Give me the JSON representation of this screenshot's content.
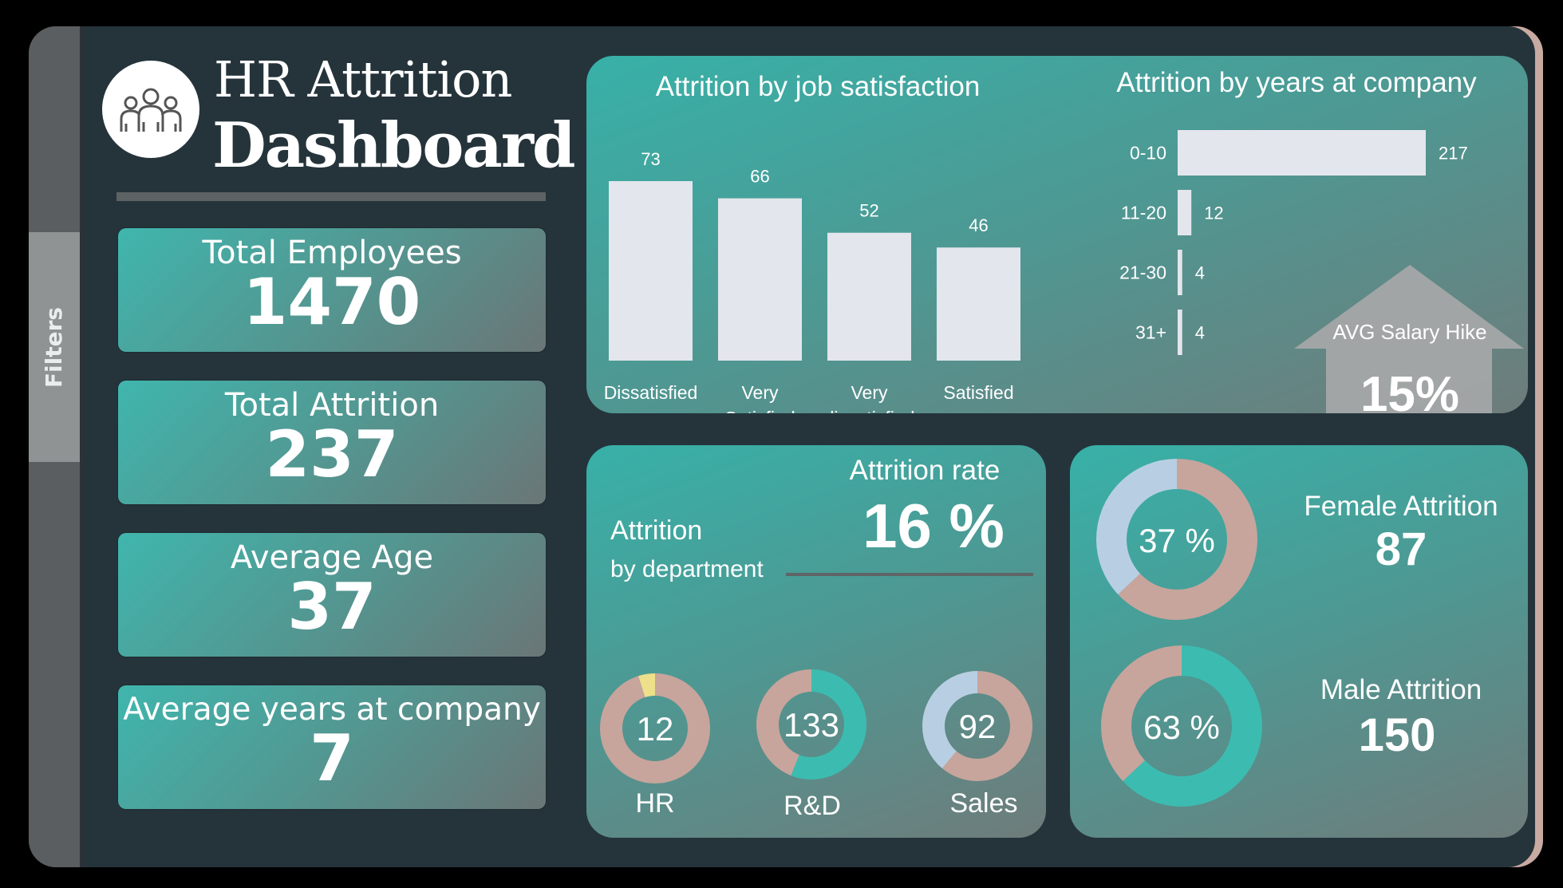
{
  "sidebar": {
    "filters_label": "Filters"
  },
  "header": {
    "title_line1": "HR Attrition",
    "title_line2": "Dashboard",
    "logo_icon": "people-group-icon"
  },
  "kpis": [
    {
      "label": "Total Employees",
      "value": "1470"
    },
    {
      "label": "Total Attrition",
      "value": "237"
    },
    {
      "label": "Average Age",
      "value": "37"
    },
    {
      "label": "Average years at company",
      "value": "7"
    }
  ],
  "job_satisfaction": {
    "title": "Attrition by job satisfaction"
  },
  "years_at_company": {
    "title": "Attrition by years at company"
  },
  "salary_hike": {
    "label": "AVG Salary Hike",
    "value": "15%"
  },
  "department": {
    "title_line1": "Attrition",
    "title_line2": "by department",
    "rate_label": "Attrition rate",
    "rate_value": "16 %",
    "items": [
      {
        "name": "HR",
        "value": "12"
      },
      {
        "name": "R&D",
        "value": "133"
      },
      {
        "name": "Sales",
        "value": "92"
      }
    ]
  },
  "gender": {
    "female_label": "Female Attrition",
    "female_value": "87",
    "female_pct": "37 %",
    "male_label": "Male Attrition",
    "male_value": "150",
    "male_pct": "63 %"
  },
  "colors": {
    "background": "#25343b",
    "teal": "#3fb6ad",
    "bar": "#e3e6ec",
    "donut_rose": "#c7a59c",
    "donut_blue": "#b8cfe3",
    "donut_teal": "#3cbcb0",
    "donut_yellow": "#eee08a"
  },
  "chart_data": [
    {
      "type": "bar",
      "title": "Attrition by job satisfaction",
      "categories": [
        "Dissatisfied",
        "Very Satisfied",
        "Very dissatisfied",
        "Satisfied"
      ],
      "category_lines": [
        [
          "Dissatisfied"
        ],
        [
          "Very",
          "Satisfied"
        ],
        [
          "Very",
          "dissatisfied"
        ],
        [
          "Satisfied"
        ]
      ],
      "values": [
        73,
        66,
        52,
        46
      ],
      "ylim": [
        0,
        73
      ]
    },
    {
      "type": "bar",
      "orientation": "horizontal",
      "title": "Attrition by years at company",
      "categories": [
        "0-10",
        "11-20",
        "21-30",
        "31+"
      ],
      "values": [
        217,
        12,
        4,
        4
      ],
      "xlim": [
        0,
        217
      ]
    },
    {
      "type": "pie",
      "title": "Attrition by department",
      "donuts": [
        {
          "name": "HR",
          "label": "12",
          "segments": [
            {
              "value": 95,
              "color": "#c7a59c"
            },
            {
              "value": 5,
              "color": "#eee08a"
            }
          ]
        },
        {
          "name": "R&D",
          "label": "133",
          "segments": [
            {
              "value": 56,
              "color": "#3cbcb0"
            },
            {
              "value": 44,
              "color": "#c7a59c"
            }
          ]
        },
        {
          "name": "Sales",
          "label": "92",
          "segments": [
            {
              "value": 61,
              "color": "#c7a59c"
            },
            {
              "value": 39,
              "color": "#b8cfe3"
            }
          ]
        }
      ]
    },
    {
      "type": "pie",
      "title": "Attrition by gender",
      "donuts": [
        {
          "name": "Female Attrition",
          "label": "37 %",
          "segments": [
            {
              "value": 63,
              "color": "#c7a59c"
            },
            {
              "value": 37,
              "color": "#b8cfe3"
            }
          ]
        },
        {
          "name": "Male Attrition",
          "label": "63 %",
          "segments": [
            {
              "value": 63,
              "color": "#3cbcb0"
            },
            {
              "value": 37,
              "color": "#c7a59c"
            }
          ]
        }
      ]
    }
  ]
}
